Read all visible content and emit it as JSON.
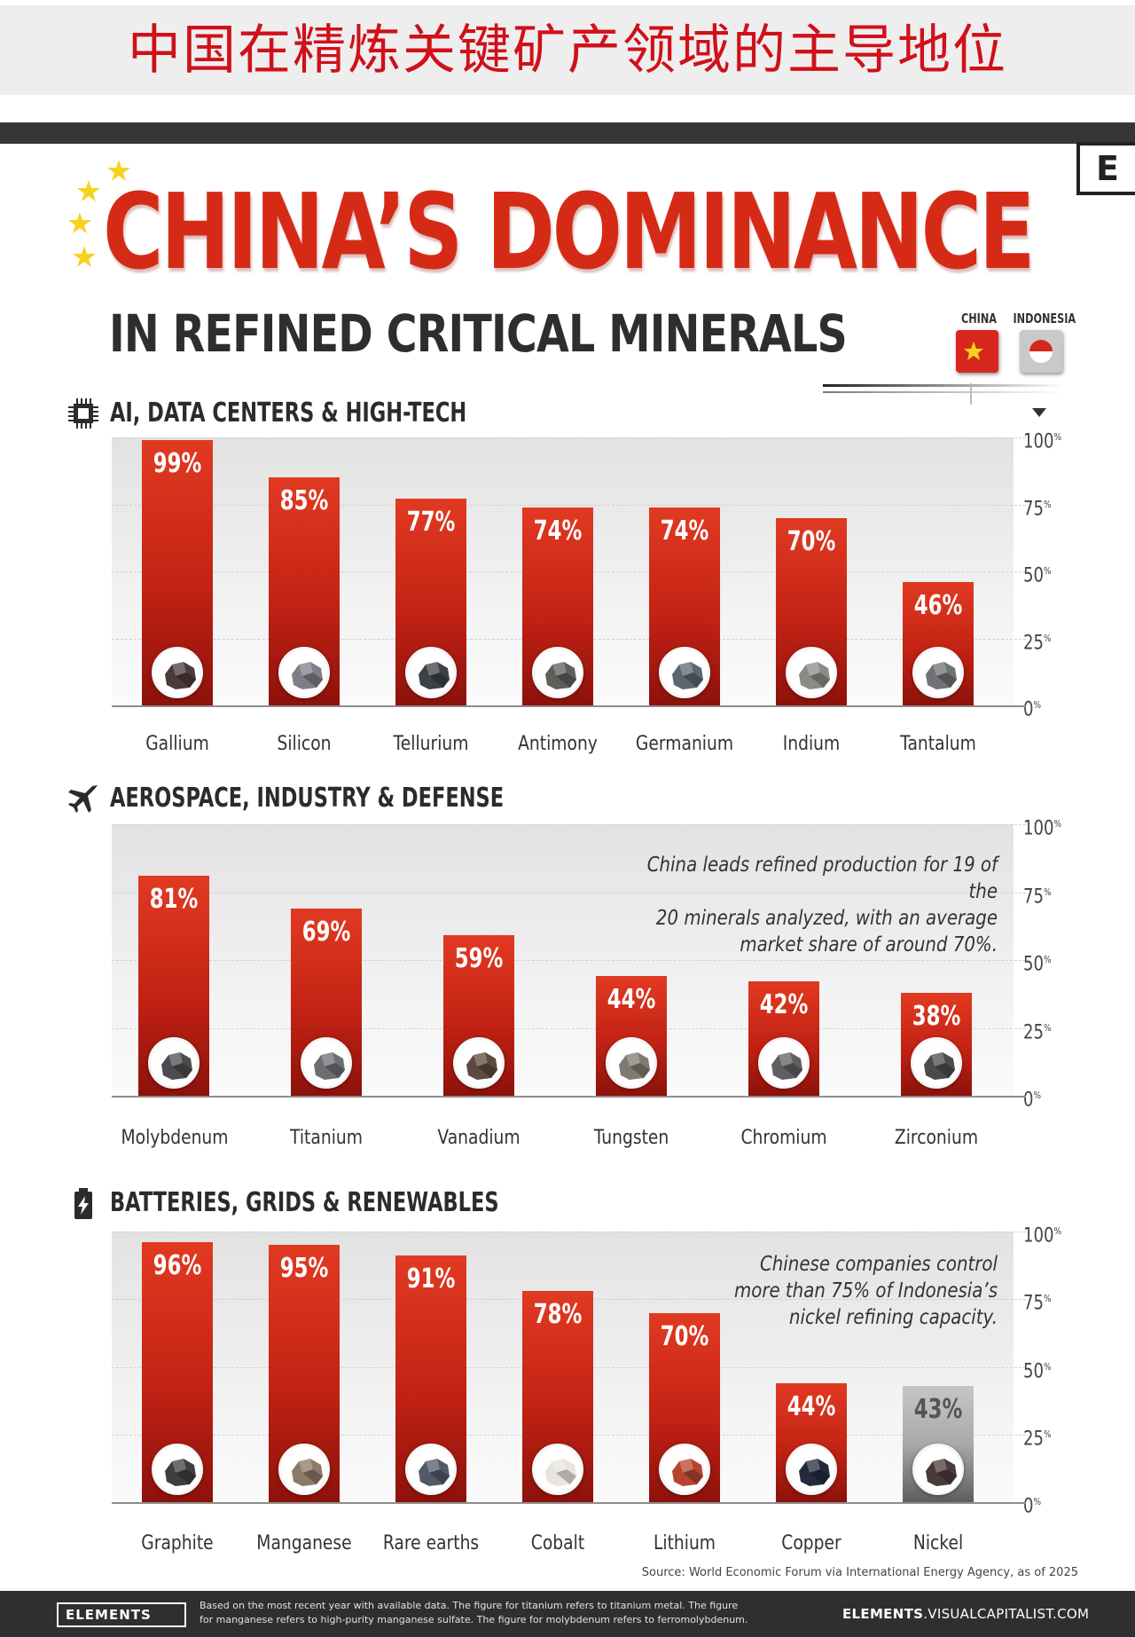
{
  "banner_title": "中国在精炼关键矿产领域的主导地位",
  "logo_letter": "E",
  "title": "CHINA’S DOMINANCE",
  "subtitle": "IN REFINED CRITICAL MINERALS",
  "legend": {
    "china": "CHINA",
    "indonesia": "INDONESIA"
  },
  "colors": {
    "china": "#d32a17",
    "indonesia": "#a8a8a8",
    "title": "#d52b16"
  },
  "chart_data": [
    {
      "type": "bar",
      "title": "AI, DATA CENTERS & HIGH-TECH",
      "icon": "chip-icon",
      "categories": [
        "Gallium",
        "Silicon",
        "Tellurium",
        "Antimony",
        "Germanium",
        "Indium",
        "Tantalum"
      ],
      "values": [
        99,
        85,
        77,
        74,
        74,
        70,
        46
      ],
      "labels": [
        "99%",
        "85%",
        "77%",
        "74%",
        "74%",
        "70%",
        "46%"
      ],
      "country": [
        "china",
        "china",
        "china",
        "china",
        "china",
        "china",
        "china"
      ],
      "yticks": [
        {
          "value": 100,
          "label": "100"
        },
        {
          "value": 75,
          "label": "75"
        },
        {
          "value": 50,
          "label": "50"
        },
        {
          "value": 25,
          "label": "25"
        },
        {
          "value": 0,
          "label": "0"
        }
      ],
      "ylim": [
        0,
        100
      ],
      "annotation": []
    },
    {
      "type": "bar",
      "title": "AEROSPACE, INDUSTRY & DEFENSE",
      "icon": "airplane-icon",
      "categories": [
        "Molybdenum",
        "Titanium",
        "Vanadium",
        "Tungsten",
        "Chromium",
        "Zirconium"
      ],
      "values": [
        81,
        69,
        59,
        44,
        42,
        38
      ],
      "labels": [
        "81%",
        "69%",
        "59%",
        "44%",
        "42%",
        "38%"
      ],
      "country": [
        "china",
        "china",
        "china",
        "china",
        "china",
        "china"
      ],
      "yticks": [
        {
          "value": 100,
          "label": "100"
        },
        {
          "value": 75,
          "label": "75"
        },
        {
          "value": 50,
          "label": "50"
        },
        {
          "value": 25,
          "label": "25"
        },
        {
          "value": 0,
          "label": "0"
        }
      ],
      "ylim": [
        0,
        100
      ],
      "annotation": [
        "China leads refined production for 19 of the",
        "20 minerals analyzed, with an average",
        "market share of around 70%."
      ]
    },
    {
      "type": "bar",
      "title": "BATTERIES, GRIDS & RENEWABLES",
      "icon": "battery-icon",
      "categories": [
        "Graphite",
        "Manganese",
        "Rare earths",
        "Cobalt",
        "Lithium",
        "Copper",
        "Nickel"
      ],
      "values": [
        96,
        95,
        91,
        78,
        70,
        44,
        43
      ],
      "labels": [
        "96%",
        "95%",
        "91%",
        "78%",
        "70%",
        "44%",
        "43%"
      ],
      "country": [
        "china",
        "china",
        "china",
        "china",
        "china",
        "china",
        "indonesia"
      ],
      "yticks": [
        {
          "value": 100,
          "label": "100"
        },
        {
          "value": 75,
          "label": "75"
        },
        {
          "value": 50,
          "label": "50"
        },
        {
          "value": 25,
          "label": "25"
        },
        {
          "value": 0,
          "label": "0"
        }
      ],
      "ylim": [
        0,
        100
      ],
      "annotation": [
        "Chinese companies control",
        "more than 75% of Indonesia’s",
        "nickel refining capacity."
      ]
    }
  ],
  "tick_unit": "%",
  "source": "Source: World Economic Forum via International Energy Agency, as of 2025",
  "footer": {
    "logo": "ELEMENTS",
    "note": "Based on the most recent year with available data. The figure for titanium refers to titanium metal. The figure for manganese refers to high-purity manganese sulfate. The figure for molybdenum refers to ferromolybdenum.",
    "site_bold": "ELEMENTS",
    "site_rest": ".VISUALCAPITALIST.COM"
  }
}
